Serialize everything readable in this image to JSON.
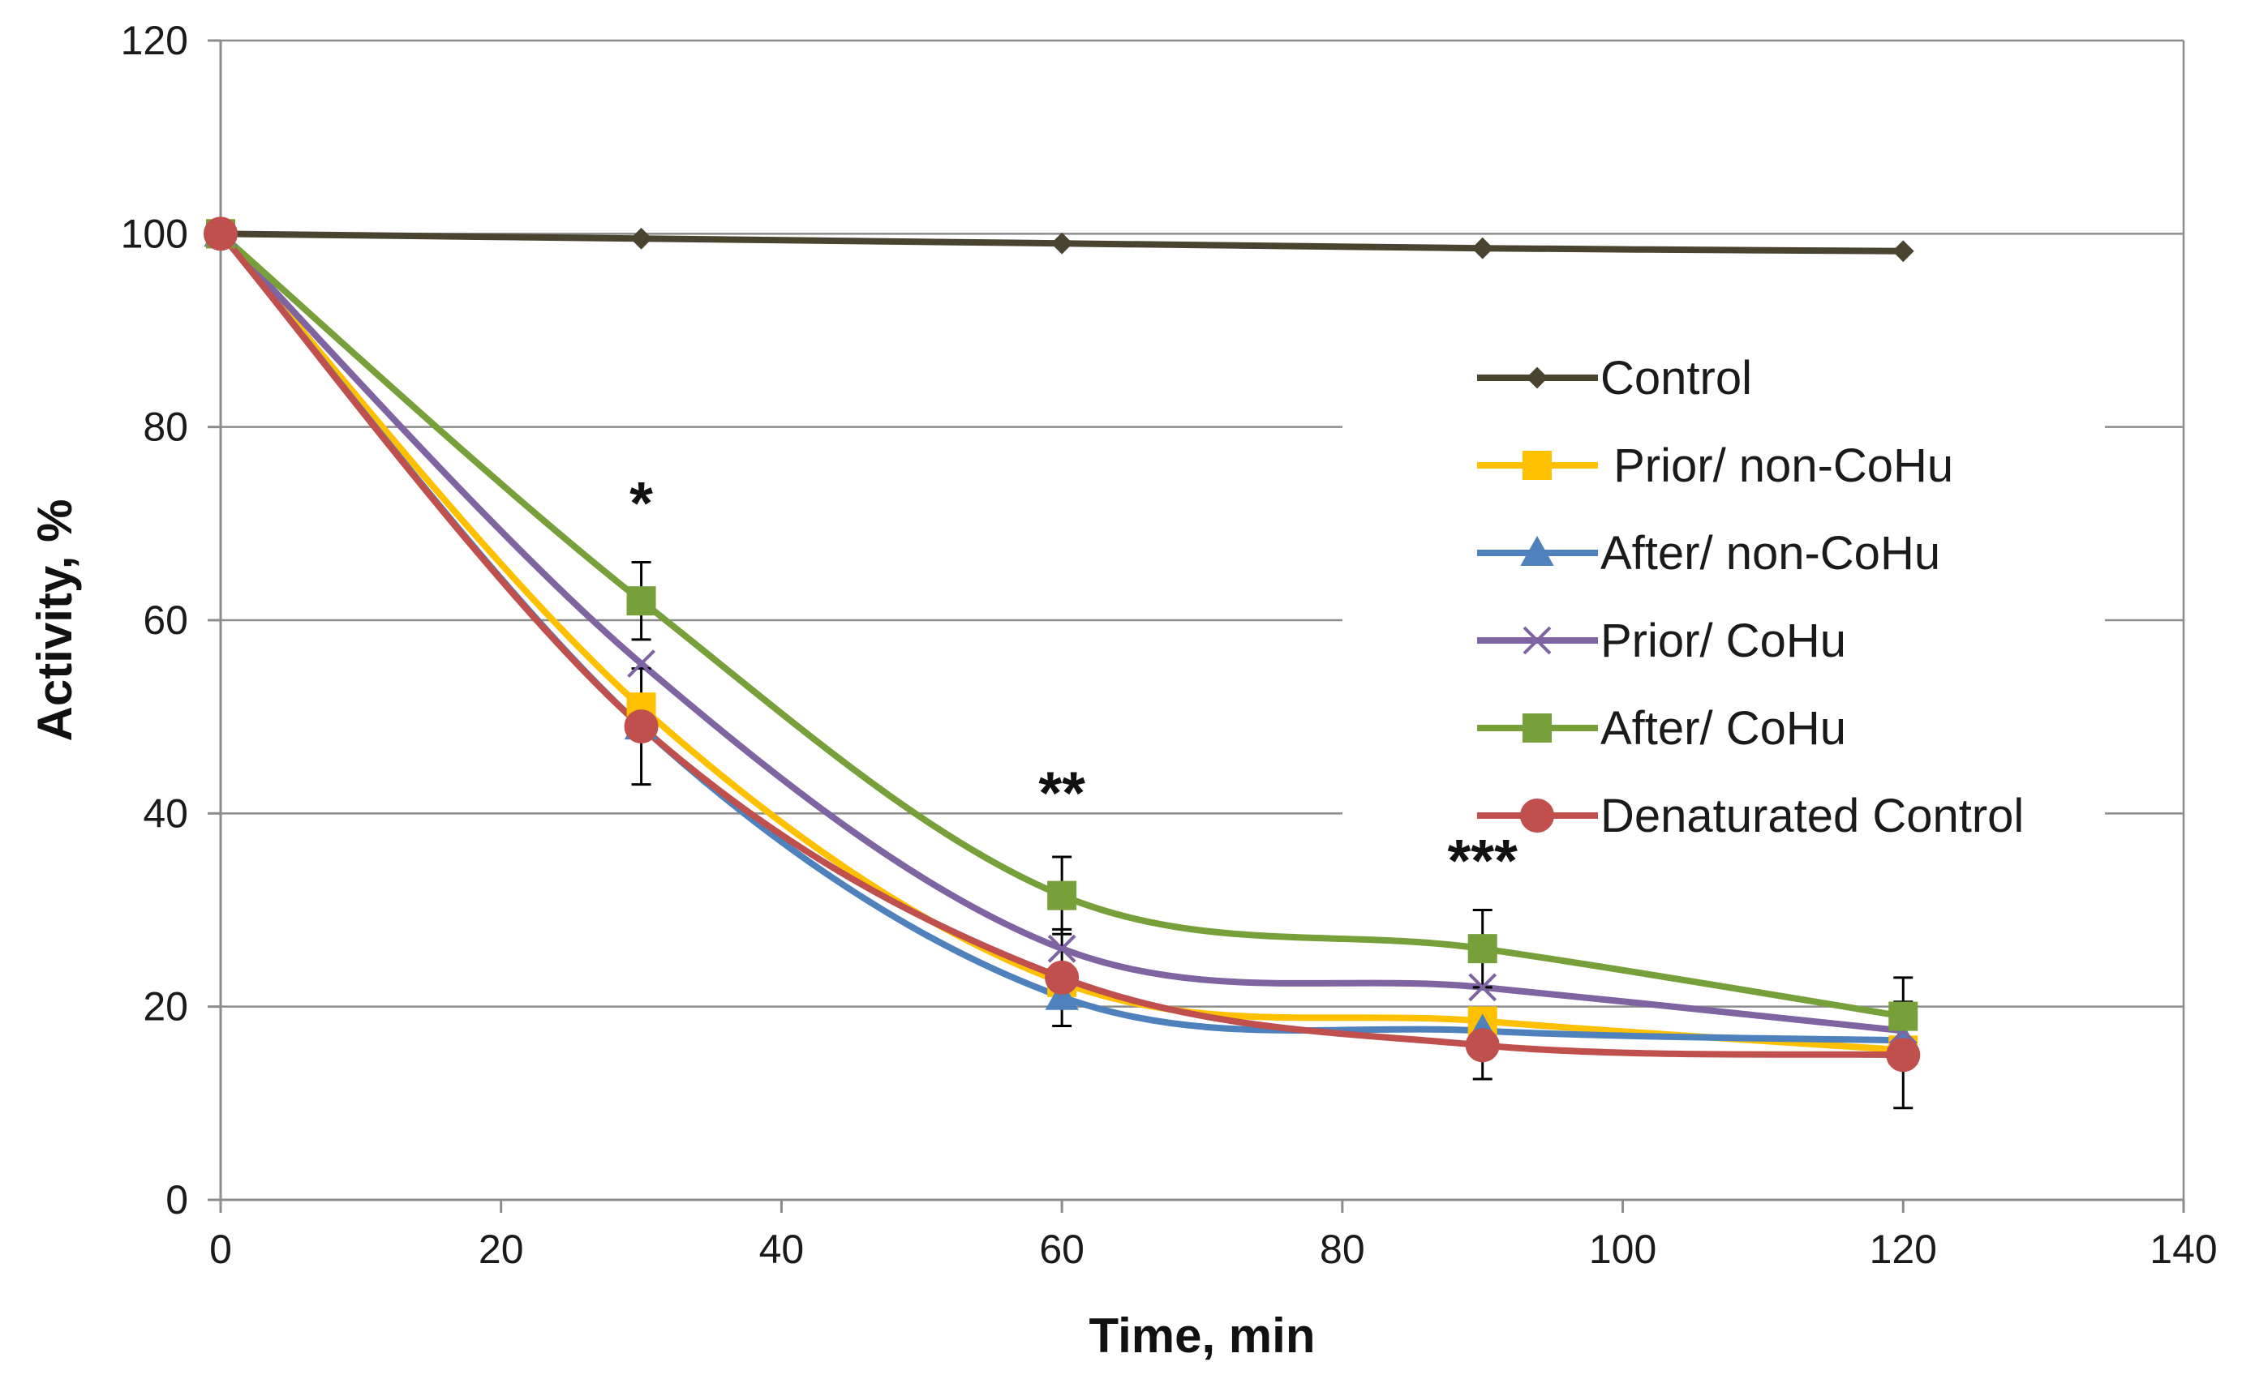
{
  "chart_data": {
    "type": "line",
    "title": "",
    "xlabel": "Time, min",
    "ylabel": "Activity, %",
    "xlim": [
      0,
      140
    ],
    "ylim": [
      0,
      120
    ],
    "xticks": [
      0,
      20,
      40,
      60,
      80,
      100,
      120,
      140
    ],
    "yticks": [
      0,
      20,
      40,
      60,
      80,
      100,
      120
    ],
    "grid": "horizontal",
    "legend_position": "right",
    "x": [
      0,
      30,
      60,
      90,
      120
    ],
    "series": [
      {
        "name": "Control",
        "color": "#4a4330",
        "marker": "diamond",
        "values": [
          100,
          99.5,
          99,
          98.5,
          98.2
        ],
        "errors": [
          0,
          0,
          0,
          0,
          0
        ]
      },
      {
        "name": " Prior/ non-CoHu",
        "color": "#ffc000",
        "marker": "square",
        "values": [
          100,
          51,
          22.5,
          18.5,
          15.5
        ],
        "errors": [
          0,
          0,
          0,
          0,
          0
        ]
      },
      {
        "name": "After/ non-CoHu",
        "color": "#4f81bd",
        "marker": "triangle",
        "values": [
          100,
          49,
          21,
          17.5,
          16.5
        ],
        "errors": [
          0,
          0,
          0,
          0,
          0
        ]
      },
      {
        "name": "Prior/ CoHu",
        "color": "#7f64a2",
        "marker": "x",
        "values": [
          100,
          55.5,
          26,
          22,
          17.5
        ],
        "errors": [
          0,
          0,
          0,
          0,
          0
        ]
      },
      {
        "name": "After/ CoHu",
        "color": "#77a03a",
        "marker": "square",
        "values": [
          100,
          62,
          31.5,
          26,
          19
        ],
        "errors": [
          0,
          4,
          4,
          4,
          4
        ]
      },
      {
        "name": "Denaturated Control",
        "color": "#c0504d",
        "marker": "circle",
        "values": [
          100,
          49,
          23,
          16,
          15
        ],
        "errors": [
          0,
          6,
          5,
          3.5,
          5.5
        ]
      }
    ],
    "annotations": [
      {
        "text": "*",
        "x": 30,
        "y": 70
      },
      {
        "text": "**",
        "x": 60,
        "y": 40
      },
      {
        "text": "***",
        "x": 90,
        "y": 33
      }
    ]
  }
}
